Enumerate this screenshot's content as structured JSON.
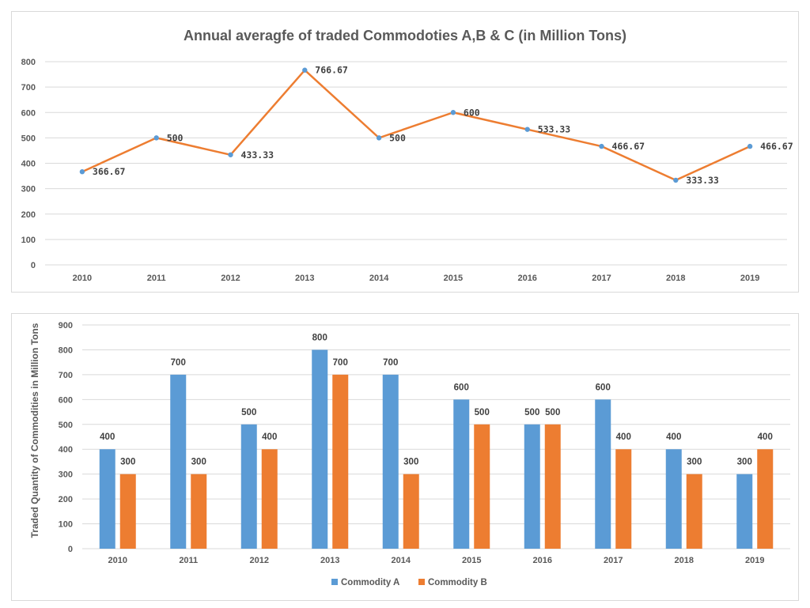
{
  "chart_data": [
    {
      "type": "line",
      "title": "Annual averagfe of traded Commodoties A,B & C (in Million Tons)",
      "categories": [
        "2010",
        "2011",
        "2012",
        "2013",
        "2014",
        "2015",
        "2016",
        "2017",
        "2018",
        "2019"
      ],
      "values": [
        366.67,
        500,
        433.33,
        766.67,
        500,
        600,
        533.33,
        466.67,
        333.33,
        466.67
      ],
      "value_labels": [
        "366.67",
        "500",
        "433.33",
        "766.67",
        "500",
        "600",
        "533.33",
        "466.67",
        "333.33",
        "466.67"
      ],
      "ylim": [
        0,
        800
      ],
      "yticks": [
        0,
        100,
        200,
        300,
        400,
        500,
        600,
        700,
        800
      ],
      "grid": true,
      "xlabel": "",
      "ylabel": "",
      "colors": {
        "line": "#ED7D31",
        "marker": "#5B9BD5"
      }
    },
    {
      "type": "bar",
      "title": "",
      "categories": [
        "2010",
        "2011",
        "2012",
        "2013",
        "2014",
        "2015",
        "2016",
        "2017",
        "2018",
        "2019"
      ],
      "series": [
        {
          "name": "Commodity A",
          "color": "#5B9BD5",
          "values": [
            400,
            700,
            500,
            800,
            700,
            600,
            500,
            600,
            400,
            300
          ]
        },
        {
          "name": "Commodity B",
          "color": "#ED7D31",
          "values": [
            300,
            300,
            400,
            700,
            300,
            500,
            500,
            400,
            300,
            400
          ]
        }
      ],
      "ylim": [
        0,
        900
      ],
      "yticks": [
        0,
        100,
        200,
        300,
        400,
        500,
        600,
        700,
        800,
        900
      ],
      "grid": true,
      "xlabel": "",
      "ylabel": "Traded Quantity of Commodities in Million Tons",
      "legend_position": "bottom"
    }
  ]
}
